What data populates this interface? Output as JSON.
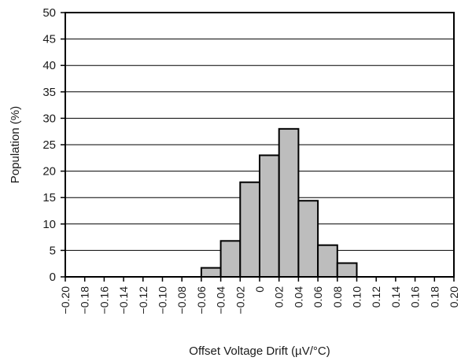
{
  "chart_data": {
    "type": "bar",
    "xlabel": "Offset Voltage Drift (µV/°C)",
    "ylabel": "Population (%)",
    "ylim": [
      0,
      50
    ],
    "xlim": [
      -0.2,
      0.2
    ],
    "y_ticks": [
      0,
      5,
      10,
      15,
      20,
      25,
      30,
      35,
      40,
      45,
      50
    ],
    "y_tick_labels": [
      "0",
      "5",
      "10",
      "15",
      "20",
      "25",
      "30",
      "35",
      "40",
      "45",
      "50"
    ],
    "x_ticks": [
      -0.2,
      -0.18,
      -0.16,
      -0.14,
      -0.12,
      -0.1,
      -0.08,
      -0.06,
      -0.04,
      -0.02,
      0,
      0.02,
      0.04,
      0.06,
      0.08,
      0.1,
      0.12,
      0.14,
      0.16,
      0.18,
      0.2
    ],
    "x_tick_labels": [
      "−0.20",
      "−0.18",
      "−0.16",
      "−0.14",
      "−0.12",
      "−0.10",
      "−0.08",
      "−0.06",
      "−0.04",
      "−0.02",
      "0",
      "0.02",
      "0.04",
      "0.06",
      "0.08",
      "0.10",
      "0.12",
      "0.14",
      "0.16",
      "0.18",
      "0.20"
    ],
    "bins": [
      {
        "from": -0.06,
        "to": -0.04,
        "value": 1.7
      },
      {
        "from": -0.04,
        "to": -0.02,
        "value": 6.8
      },
      {
        "from": -0.02,
        "to": 0.0,
        "value": 17.9
      },
      {
        "from": 0.0,
        "to": 0.02,
        "value": 23.0
      },
      {
        "from": 0.02,
        "to": 0.04,
        "value": 28.0
      },
      {
        "from": 0.04,
        "to": 0.06,
        "value": 14.4
      },
      {
        "from": 0.06,
        "to": 0.08,
        "value": 6.0
      },
      {
        "from": 0.08,
        "to": 0.1,
        "value": 2.6
      }
    ],
    "grid": "horizontal",
    "colors": {
      "bar_fill": "#bdbdbd",
      "bar_edge": "#000000",
      "grid": "#000000"
    }
  }
}
